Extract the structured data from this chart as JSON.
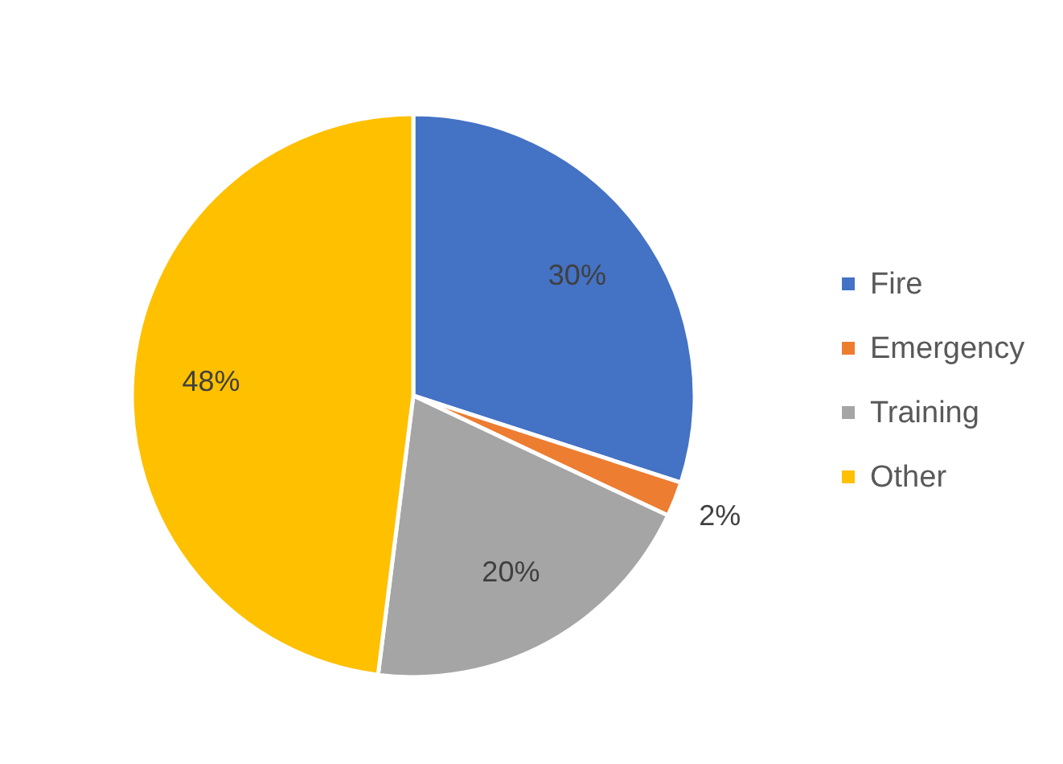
{
  "chart_data": {
    "type": "pie",
    "categories": [
      "Fire",
      "Emergency",
      "Training",
      "Other"
    ],
    "values": [
      30,
      2,
      20,
      48
    ],
    "colors": [
      "#4472c4",
      "#ed7d31",
      "#a5a5a5",
      "#ffc000"
    ],
    "value_labels": [
      "30%",
      "2%",
      "20%",
      "48%"
    ],
    "legend": "right"
  }
}
